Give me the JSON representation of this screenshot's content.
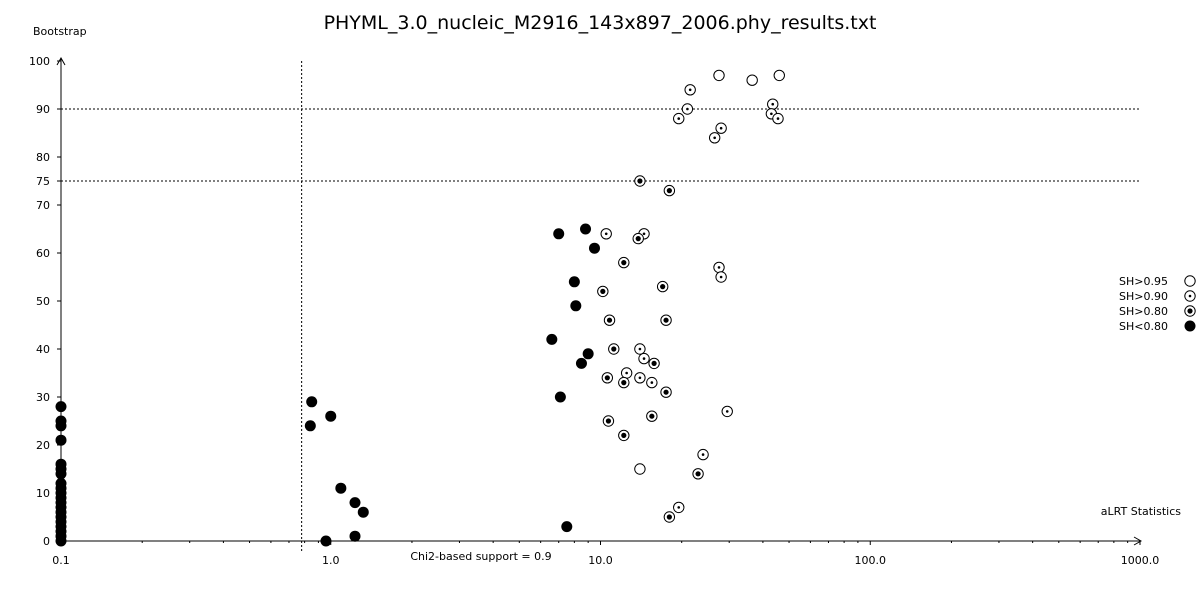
{
  "chart_data": {
    "type": "scatter",
    "title": "PHYML_3.0_nucleic_M2916_143x897_2006.phy_results.txt",
    "xlabel": "aLRT Statistics",
    "ylabel": "Bootstrap",
    "x_scale": "log",
    "xlim": [
      0.1,
      1000.0
    ],
    "ylim": [
      0,
      100
    ],
    "x_ticks": [
      "0.1",
      "1.0",
      "10.0",
      "100.0",
      "1000.0"
    ],
    "y_ticks": [
      "0",
      "10",
      "20",
      "30",
      "40",
      "50",
      "60",
      "70",
      "75",
      "80",
      "90",
      "100"
    ],
    "reference_lines": {
      "chi2_label": "Chi2-based support = 0.9",
      "chi2_x": 0.78,
      "bootstrap_levels": [
        90,
        75
      ]
    },
    "legend": {
      "placement": "right",
      "entries": [
        {
          "label": "SH>0.95",
          "marker": "open"
        },
        {
          "label": "SH>0.90",
          "marker": "open-small-dot"
        },
        {
          "label": "SH>0.80",
          "marker": "open-big-dot"
        },
        {
          "label": "SH<0.80",
          "marker": "filled"
        }
      ]
    },
    "series": [
      {
        "name": "SH>0.95",
        "marker": "open",
        "points": [
          [
            27.5,
            97
          ],
          [
            36.5,
            96
          ],
          [
            46.0,
            97
          ],
          [
            14.0,
            15
          ]
        ]
      },
      {
        "name": "SH>0.90",
        "marker": "open-small-dot",
        "points": [
          [
            21.5,
            94
          ],
          [
            21.0,
            90
          ],
          [
            19.5,
            88
          ],
          [
            28.0,
            86
          ],
          [
            26.5,
            84
          ],
          [
            43.5,
            91
          ],
          [
            43.0,
            89
          ],
          [
            45.5,
            88
          ],
          [
            10.5,
            64
          ],
          [
            14.5,
            64
          ],
          [
            27.5,
            57
          ],
          [
            28.0,
            55
          ],
          [
            14.0,
            40
          ],
          [
            14.5,
            38
          ],
          [
            12.5,
            35
          ],
          [
            14.0,
            34
          ],
          [
            15.5,
            33
          ],
          [
            29.5,
            27
          ],
          [
            24.0,
            18
          ],
          [
            19.5,
            7
          ]
        ]
      },
      {
        "name": "SH>0.80",
        "marker": "open-big-dot",
        "points": [
          [
            14.0,
            75
          ],
          [
            18.0,
            73
          ],
          [
            13.8,
            63
          ],
          [
            12.2,
            58
          ],
          [
            17.0,
            53
          ],
          [
            10.2,
            52
          ],
          [
            10.8,
            46
          ],
          [
            17.5,
            46
          ],
          [
            11.2,
            40
          ],
          [
            15.8,
            37
          ],
          [
            10.6,
            34
          ],
          [
            12.2,
            33
          ],
          [
            17.5,
            31
          ],
          [
            10.7,
            25
          ],
          [
            15.5,
            26
          ],
          [
            12.2,
            22
          ],
          [
            23.0,
            14
          ],
          [
            18.0,
            5
          ]
        ]
      },
      {
        "name": "SH<0.80",
        "marker": "filled",
        "points": [
          [
            7.0,
            64
          ],
          [
            8.8,
            65
          ],
          [
            9.5,
            61
          ],
          [
            8.0,
            54
          ],
          [
            8.1,
            49
          ],
          [
            6.6,
            42
          ],
          [
            9.0,
            39
          ],
          [
            8.5,
            37
          ],
          [
            7.1,
            30
          ],
          [
            0.85,
            29
          ],
          [
            1.0,
            26
          ],
          [
            0.84,
            24
          ],
          [
            1.09,
            11
          ],
          [
            1.23,
            8
          ],
          [
            1.32,
            6
          ],
          [
            7.5,
            3
          ],
          [
            1.23,
            1
          ],
          [
            0.96,
            0
          ],
          [
            0.1,
            28
          ],
          [
            0.1,
            25
          ],
          [
            0.1,
            24
          ],
          [
            0.1,
            21
          ],
          [
            0.1,
            16
          ],
          [
            0.1,
            15
          ],
          [
            0.1,
            14
          ],
          [
            0.1,
            12
          ],
          [
            0.1,
            11
          ],
          [
            0.1,
            10
          ],
          [
            0.1,
            9
          ],
          [
            0.1,
            8
          ],
          [
            0.1,
            7
          ],
          [
            0.1,
            6
          ],
          [
            0.1,
            5
          ],
          [
            0.1,
            4
          ],
          [
            0.1,
            3
          ],
          [
            0.1,
            2
          ],
          [
            0.1,
            1
          ],
          [
            0.1,
            0
          ]
        ]
      }
    ]
  }
}
